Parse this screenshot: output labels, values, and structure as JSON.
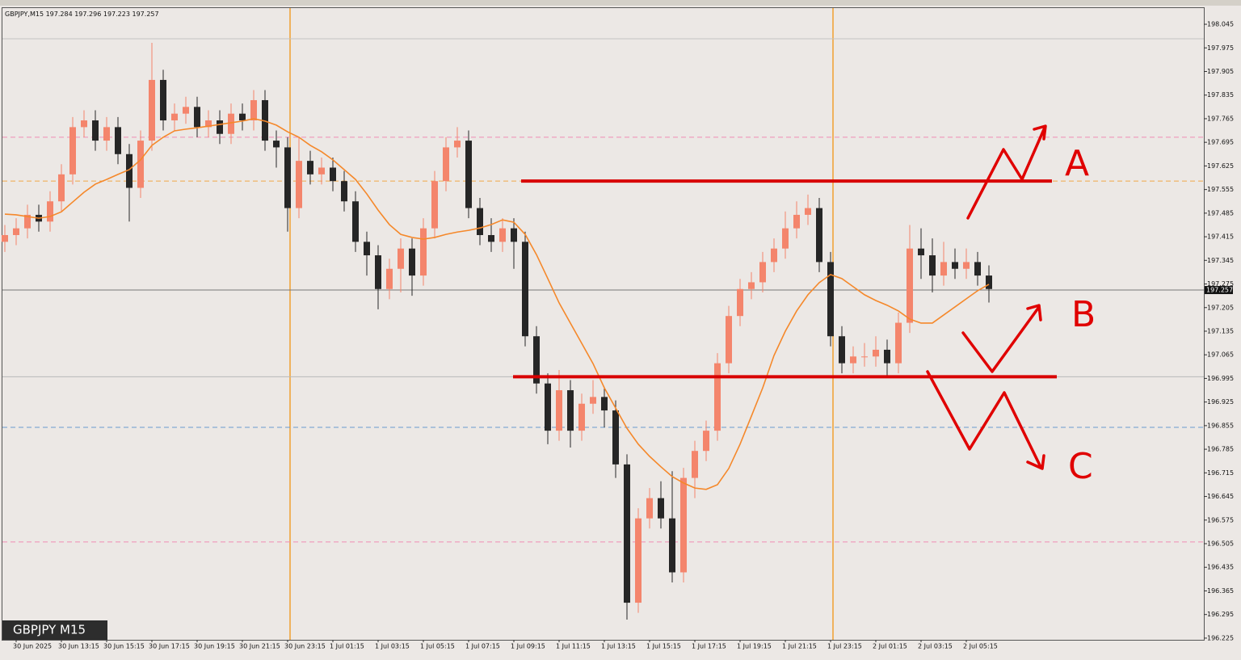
{
  "chart_data": {
    "type": "candlestick",
    "symbol": "GBPJPY,M15",
    "quote": [
      197.284,
      197.296,
      197.223,
      197.257
    ],
    "badge": "GBPJPY M15",
    "categories": [
      null,
      "30 Jun 2025",
      null,
      null,
      null,
      "30 Jun 13:15",
      null,
      null,
      null,
      "30 Jun 15:15",
      null,
      null,
      null,
      "30 Jun 17:15",
      null,
      null,
      null,
      "30 Jun 19:15",
      null,
      null,
      null,
      "30 Jun 21:15",
      null,
      null,
      null,
      "30 Jun 23:15",
      null,
      null,
      null,
      "1 Jul 01:15",
      null,
      null,
      null,
      "1 Jul 03:15",
      null,
      null,
      null,
      "1 Jul 05:15",
      null,
      null,
      null,
      "1 Jul 07:15",
      null,
      null,
      null,
      "1 Jul 09:15",
      null,
      null,
      null,
      "1 Jul 11:15",
      null,
      null,
      null,
      "1 Jul 13:15",
      null,
      null,
      null,
      "1 Jul 15:15",
      null,
      null,
      null,
      "1 Jul 17:15",
      null,
      null,
      null,
      "1 Jul 19:15",
      null,
      null,
      null,
      "1 Jul 21:15",
      null,
      null,
      null,
      "1 Jul 23:15",
      null,
      null,
      null,
      "2 Jul 01:15",
      null,
      null,
      null,
      "2 Jul 03:15",
      null,
      null,
      null,
      "2 Jul 05:15",
      null,
      null
    ],
    "ohlc": [
      [
        197.4,
        197.45,
        197.37,
        197.42
      ],
      [
        197.42,
        197.47,
        197.39,
        197.44
      ],
      [
        197.44,
        197.51,
        197.41,
        197.48
      ],
      [
        197.48,
        197.51,
        197.43,
        197.46
      ],
      [
        197.46,
        197.55,
        197.43,
        197.52
      ],
      [
        197.52,
        197.63,
        197.49,
        197.6
      ],
      [
        197.6,
        197.77,
        197.57,
        197.74
      ],
      [
        197.74,
        197.79,
        197.71,
        197.76
      ],
      [
        197.76,
        197.79,
        197.67,
        197.7
      ],
      [
        197.7,
        197.77,
        197.67,
        197.74
      ],
      [
        197.74,
        197.77,
        197.63,
        197.66
      ],
      [
        197.66,
        197.69,
        197.46,
        197.56
      ],
      [
        197.56,
        197.73,
        197.53,
        197.7
      ],
      [
        197.7,
        197.99,
        197.67,
        197.88
      ],
      [
        197.88,
        197.91,
        197.73,
        197.76
      ],
      [
        197.76,
        197.81,
        197.73,
        197.78
      ],
      [
        197.78,
        197.83,
        197.75,
        197.8
      ],
      [
        197.8,
        197.83,
        197.71,
        197.74
      ],
      [
        197.74,
        197.79,
        197.71,
        197.76
      ],
      [
        197.76,
        197.79,
        197.69,
        197.72
      ],
      [
        197.72,
        197.81,
        197.69,
        197.78
      ],
      [
        197.78,
        197.81,
        197.73,
        197.76
      ],
      [
        197.76,
        197.85,
        197.73,
        197.82
      ],
      [
        197.82,
        197.85,
        197.67,
        197.7
      ],
      [
        197.7,
        197.73,
        197.62,
        197.68
      ],
      [
        197.68,
        197.71,
        197.43,
        197.5
      ],
      [
        197.5,
        197.71,
        197.47,
        197.64
      ],
      [
        197.64,
        197.67,
        197.57,
        197.6
      ],
      [
        197.6,
        197.65,
        197.57,
        197.62
      ],
      [
        197.62,
        197.65,
        197.55,
        197.58
      ],
      [
        197.58,
        197.61,
        197.49,
        197.52
      ],
      [
        197.52,
        197.55,
        197.37,
        197.4
      ],
      [
        197.4,
        197.43,
        197.3,
        197.36
      ],
      [
        197.36,
        197.39,
        197.2,
        197.26
      ],
      [
        197.26,
        197.35,
        197.23,
        197.32
      ],
      [
        197.32,
        197.41,
        197.25,
        197.38
      ],
      [
        197.38,
        197.41,
        197.24,
        197.3
      ],
      [
        197.3,
        197.47,
        197.27,
        197.44
      ],
      [
        197.44,
        197.61,
        197.41,
        197.58
      ],
      [
        197.58,
        197.71,
        197.55,
        197.68
      ],
      [
        197.68,
        197.74,
        197.65,
        197.7
      ],
      [
        197.7,
        197.73,
        197.47,
        197.5
      ],
      [
        197.5,
        197.53,
        197.39,
        197.42
      ],
      [
        197.42,
        197.47,
        197.37,
        197.4
      ],
      [
        197.4,
        197.47,
        197.37,
        197.44
      ],
      [
        197.44,
        197.47,
        197.32,
        197.4
      ],
      [
        197.4,
        197.43,
        197.09,
        197.12
      ],
      [
        197.12,
        197.15,
        196.95,
        196.98
      ],
      [
        196.98,
        197.01,
        196.8,
        196.84
      ],
      [
        196.84,
        197.02,
        196.81,
        196.96
      ],
      [
        196.96,
        196.99,
        196.79,
        196.84
      ],
      [
        196.84,
        196.95,
        196.81,
        196.92
      ],
      [
        196.92,
        196.99,
        196.89,
        196.94
      ],
      [
        196.94,
        196.97,
        196.85,
        196.9
      ],
      [
        196.9,
        196.93,
        196.7,
        196.74
      ],
      [
        196.74,
        196.77,
        196.28,
        196.33
      ],
      [
        196.33,
        196.61,
        196.3,
        196.58
      ],
      [
        196.58,
        196.67,
        196.55,
        196.64
      ],
      [
        196.64,
        196.69,
        196.55,
        196.58
      ],
      [
        196.58,
        196.72,
        196.39,
        196.42
      ],
      [
        196.42,
        196.73,
        196.39,
        196.7
      ],
      [
        196.7,
        196.81,
        196.64,
        196.78
      ],
      [
        196.78,
        196.87,
        196.75,
        196.84
      ],
      [
        196.84,
        197.07,
        196.81,
        197.04
      ],
      [
        197.04,
        197.21,
        197.01,
        197.18
      ],
      [
        197.18,
        197.29,
        197.15,
        197.26
      ],
      [
        197.26,
        197.31,
        197.23,
        197.28
      ],
      [
        197.28,
        197.37,
        197.25,
        197.34
      ],
      [
        197.34,
        197.41,
        197.31,
        197.38
      ],
      [
        197.38,
        197.49,
        197.35,
        197.44
      ],
      [
        197.44,
        197.52,
        197.41,
        197.48
      ],
      [
        197.48,
        197.54,
        197.45,
        197.5
      ],
      [
        197.5,
        197.53,
        197.31,
        197.34
      ],
      [
        197.34,
        197.37,
        197.09,
        197.12
      ],
      [
        197.12,
        197.15,
        197.01,
        197.04
      ],
      [
        197.04,
        197.09,
        197.01,
        197.06
      ],
      [
        197.06,
        197.1,
        197.03,
        197.06
      ],
      [
        197.06,
        197.12,
        197.03,
        197.08
      ],
      [
        197.08,
        197.11,
        197.0,
        197.04
      ],
      [
        197.04,
        197.19,
        197.01,
        197.16
      ],
      [
        197.16,
        197.45,
        197.13,
        197.38
      ],
      [
        197.38,
        197.44,
        197.29,
        197.36
      ],
      [
        197.36,
        197.41,
        197.25,
        197.3
      ],
      [
        197.3,
        197.4,
        197.27,
        197.34
      ],
      [
        197.34,
        197.38,
        197.29,
        197.32
      ],
      [
        197.32,
        197.38,
        197.29,
        197.34
      ],
      [
        197.34,
        197.37,
        197.27,
        197.3
      ],
      [
        197.3,
        197.33,
        197.22,
        197.26
      ]
    ],
    "up_color": "#f4856c",
    "down_color": "#262626",
    "ma": {
      "color": "#f5882a",
      "values": [
        197.482,
        197.48,
        197.475,
        197.47,
        197.475,
        197.489,
        197.518,
        197.547,
        197.571,
        197.585,
        197.6,
        197.614,
        197.643,
        197.686,
        197.71,
        197.729,
        197.734,
        197.738,
        197.743,
        197.748,
        197.753,
        197.758,
        197.765,
        197.758,
        197.746,
        197.726,
        197.71,
        197.686,
        197.667,
        197.643,
        197.614,
        197.585,
        197.542,
        197.494,
        197.451,
        197.422,
        197.413,
        197.408,
        197.413,
        197.422,
        197.429,
        197.434,
        197.441,
        197.451,
        197.465,
        197.458,
        197.422,
        197.362,
        197.291,
        197.219,
        197.159,
        197.099,
        197.039,
        196.967,
        196.907,
        196.847,
        196.8,
        196.764,
        196.733,
        196.704,
        196.685,
        196.67,
        196.666,
        196.68,
        196.728,
        196.8,
        196.883,
        196.967,
        197.063,
        197.135,
        197.195,
        197.243,
        197.279,
        197.303,
        197.291,
        197.267,
        197.243,
        197.226,
        197.212,
        197.195,
        197.171,
        197.159,
        197.159,
        197.183,
        197.207,
        197.231,
        197.255,
        197.274
      ]
    },
    "levels": [
      {
        "value": 198.002,
        "color": "#c4c4c4",
        "style": "solid"
      },
      {
        "value": 197.71,
        "color": "#f08cb4",
        "style": "dashed"
      },
      {
        "value": 197.58,
        "color": "#f0a848",
        "style": "dashed"
      },
      {
        "value": 197.0,
        "color": "#b8b8b8",
        "style": "solid"
      },
      {
        "value": 196.85,
        "color": "#6a9ad0",
        "style": "dashed"
      },
      {
        "value": 196.51,
        "color": "#f08cb4",
        "style": "dashed"
      }
    ],
    "red_lines": [
      197.58,
      197.0
    ],
    "current_price": 197.257,
    "annotations": [
      "A",
      "B",
      "C"
    ],
    "ylim": [
      196.22,
      198.093
    ],
    "yticks": [
      198.045,
      197.975,
      197.905,
      197.835,
      197.765,
      197.695,
      197.625,
      197.555,
      197.485,
      197.415,
      197.345,
      197.275,
      197.205,
      197.135,
      197.065,
      196.995,
      196.925,
      196.855,
      196.785,
      196.715,
      196.645,
      196.575,
      196.505,
      196.435,
      196.365,
      196.295,
      196.225
    ]
  }
}
